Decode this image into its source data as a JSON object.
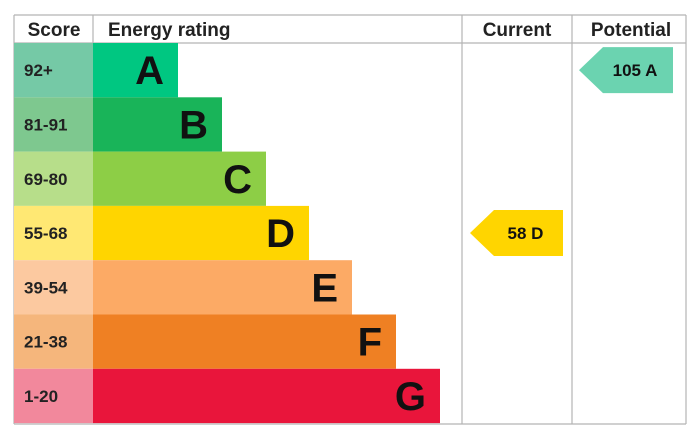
{
  "headers": {
    "score": "Score",
    "rating": "Energy rating",
    "current": "Current",
    "potential": "Potential"
  },
  "chart_data": {
    "type": "bar",
    "title": "",
    "categories": [
      "A",
      "B",
      "C",
      "D",
      "E",
      "F",
      "G"
    ],
    "score_ranges": [
      "92+",
      "81-91",
      "69-80",
      "55-68",
      "39-54",
      "21-38",
      "1-20"
    ],
    "bar_colors": [
      "#00C781",
      "#19B459",
      "#8DCE46",
      "#FFD500",
      "#FCAA65",
      "#EF8023",
      "#E9153B"
    ],
    "score_colors": [
      "#75C9A6",
      "#7EC88F",
      "#B7DE8A",
      "#FFE873",
      "#FCC9A0",
      "#F5B67C",
      "#F2889C"
    ],
    "current": {
      "value": 58,
      "band": "D",
      "label": "58 D",
      "color": "#FFD500"
    },
    "potential": {
      "value": 105,
      "band": "A",
      "label": "105 A",
      "color": "#6BD3B0"
    }
  }
}
